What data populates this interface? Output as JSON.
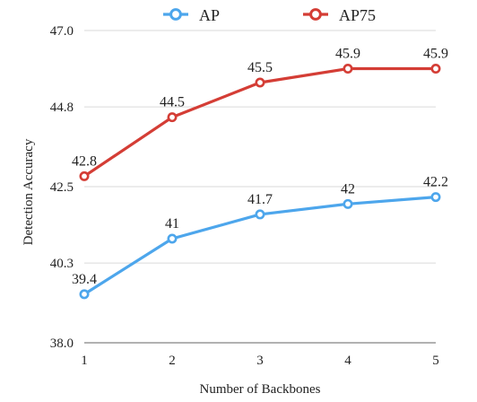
{
  "chart_data": {
    "type": "line",
    "title": "",
    "xlabel": "Number of Backbones",
    "ylabel": "Detection  Accuracy",
    "x": [
      1,
      2,
      3,
      4,
      5
    ],
    "x_tick_labels": [
      "1",
      "2",
      "3",
      "4",
      "5"
    ],
    "ylim": [
      38.0,
      47.0
    ],
    "y_ticks": [
      38.0,
      40.3,
      42.5,
      44.8,
      47.0
    ],
    "y_tick_labels": [
      "38.0",
      "40.3",
      "42.5",
      "44.8",
      "47.0"
    ],
    "grid": "horizontal",
    "legend_position": "top",
    "series": [
      {
        "name": "AP",
        "color": "#4da6ec",
        "values": [
          39.4,
          41,
          41.7,
          42,
          42.2
        ],
        "data_labels": [
          "39.4",
          "41",
          "41.7",
          "42",
          "42.2"
        ]
      },
      {
        "name": "AP75",
        "color": "#d43d35",
        "values": [
          42.8,
          44.5,
          45.5,
          45.9,
          45.9
        ],
        "data_labels": [
          "42.8",
          "44.5",
          "45.5",
          "45.9",
          "45.9"
        ]
      }
    ]
  }
}
